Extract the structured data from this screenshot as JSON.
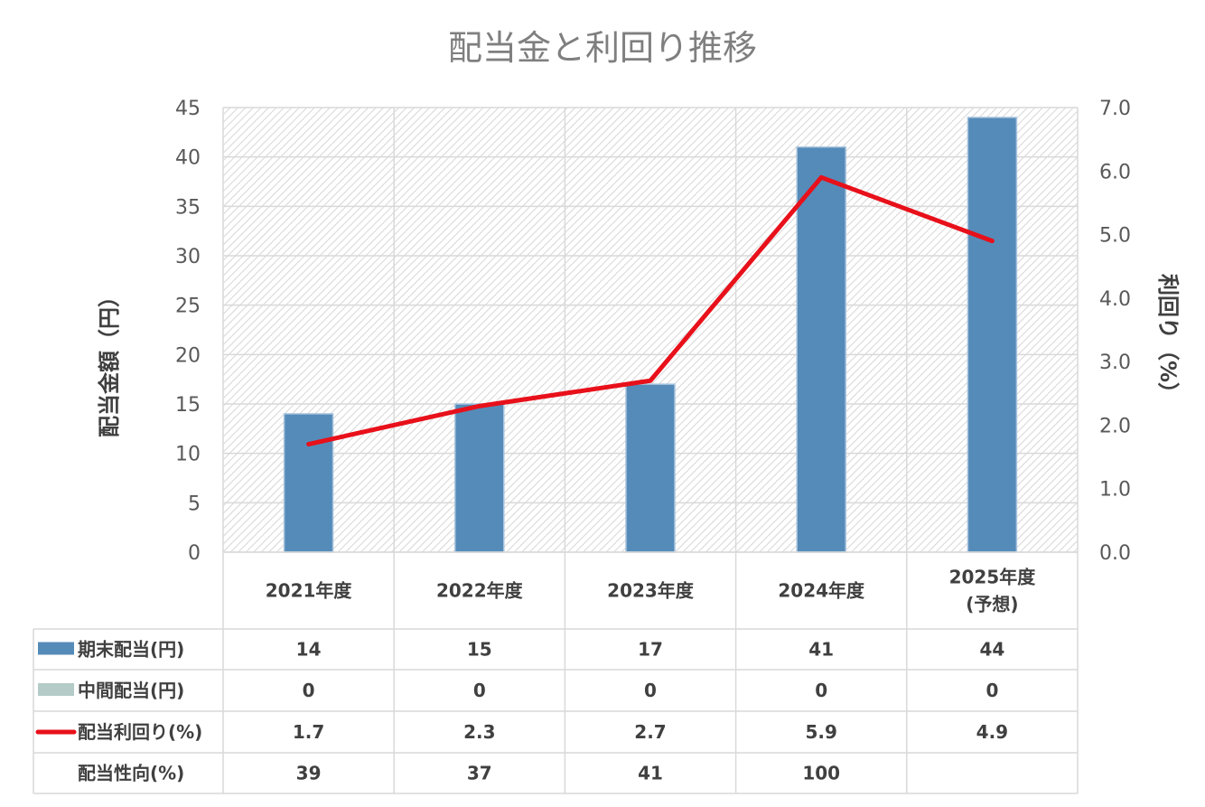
{
  "chart_data": {
    "type": "bar",
    "title": "配当金と利回り推移",
    "categories": [
      [
        "2021年度"
      ],
      [
        "2022年度"
      ],
      [
        "2023年度"
      ],
      [
        "2024年度"
      ],
      [
        "2025年度",
        "(予想)"
      ]
    ],
    "ylabel_left": "配当金額（円）",
    "ylabel_right": "利回り（%）",
    "ylim_left": [
      0,
      45
    ],
    "ylim_right": [
      0,
      7
    ],
    "left_ticks": [
      "0",
      "5",
      "10",
      "15",
      "20",
      "25",
      "30",
      "35",
      "40",
      "45"
    ],
    "right_ticks": [
      "0.0",
      "1.0",
      "2.0",
      "3.0",
      "4.0",
      "5.0",
      "6.0",
      "7.0"
    ],
    "grid": true,
    "series": [
      {
        "name": "期末配当(円)",
        "type": "bar",
        "axis": "left",
        "color": "#558bb9",
        "values": [
          14,
          15,
          17,
          41,
          44
        ]
      },
      {
        "name": "中間配当(円)",
        "type": "bar",
        "axis": "left",
        "color": "#b4cbc7",
        "values": [
          0,
          0,
          0,
          0,
          0
        ]
      },
      {
        "name": "配当利回り(%)",
        "type": "line",
        "axis": "right",
        "color": "#e8101a",
        "values": [
          1.7,
          2.3,
          2.7,
          5.9,
          4.9
        ]
      }
    ],
    "table": {
      "rows": [
        {
          "label": "期末配当(円)",
          "legend": "bar",
          "color": "#558bb9",
          "cells": [
            "14",
            "15",
            "17",
            "41",
            "44"
          ]
        },
        {
          "label": "中間配当(円)",
          "legend": "bar",
          "color": "#b4cbc7",
          "cells": [
            "0",
            "0",
            "0",
            "0",
            "0"
          ]
        },
        {
          "label": "配当利回り(%)",
          "legend": "line",
          "color": "#e8101a",
          "cells": [
            "1.7",
            "2.3",
            "2.7",
            "5.9",
            "4.9"
          ]
        },
        {
          "label": "配当性向(%)",
          "legend": "none",
          "color": "",
          "cells": [
            "39",
            "37",
            "41",
            "100",
            ""
          ]
        }
      ]
    }
  }
}
